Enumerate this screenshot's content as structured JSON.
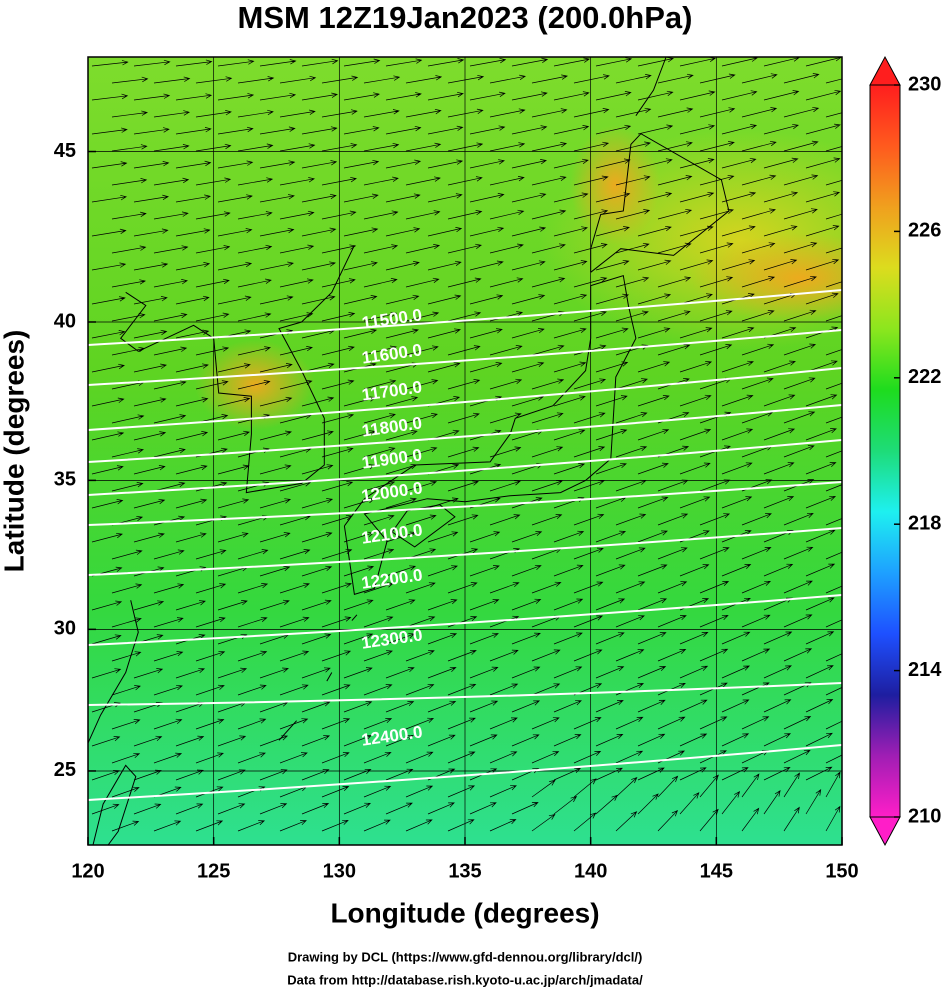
{
  "chart_data": {
    "type": "map",
    "title": "MSM 12Z19Jan2023 (200.0hPa)",
    "x_label": "Longitude (degrees)",
    "y_label": "Latitude  (degrees)",
    "xlim": [
      120,
      150
    ],
    "ylim": [
      22.3,
      47.6
    ],
    "xticks": [
      120,
      125,
      130,
      135,
      140,
      145,
      150
    ],
    "yticks": [
      25,
      30,
      35,
      40,
      45
    ],
    "grid": true,
    "colorbar": {
      "clim": [
        210,
        230
      ],
      "ticks": [
        210,
        214,
        218,
        222,
        226,
        230
      ],
      "colors": [
        "#ff1ec8",
        "#a01eb4",
        "#1e1ea0",
        "#1e50ff",
        "#1ea0ff",
        "#1ef0f0",
        "#1edc78",
        "#1edc1e",
        "#8ce61e",
        "#dcdc1e",
        "#f0a01e",
        "#ff5a1e",
        "#ff1e1e"
      ]
    },
    "contours": [
      {
        "value": 11500,
        "label": "11500.0"
      },
      {
        "value": 11600,
        "label": "11600.0"
      },
      {
        "value": 11700,
        "label": "11700.0"
      },
      {
        "value": 11800,
        "label": "11800.0"
      },
      {
        "value": 11900,
        "label": "11900.0"
      },
      {
        "value": 12000,
        "label": "12000.0"
      },
      {
        "value": 12100,
        "label": "12100.0"
      },
      {
        "value": 12200,
        "label": "12200.0"
      },
      {
        "value": 12300,
        "label": "12300.0"
      },
      {
        "value": 12400,
        "label": "12400.0"
      }
    ],
    "footer": [
      "Drawing by DCL (https://www.gfd-dennou.org/library/dcl/)",
      "Data from http://database.rish.kyoto-u.ac.jp/arch/jmadata/"
    ]
  }
}
